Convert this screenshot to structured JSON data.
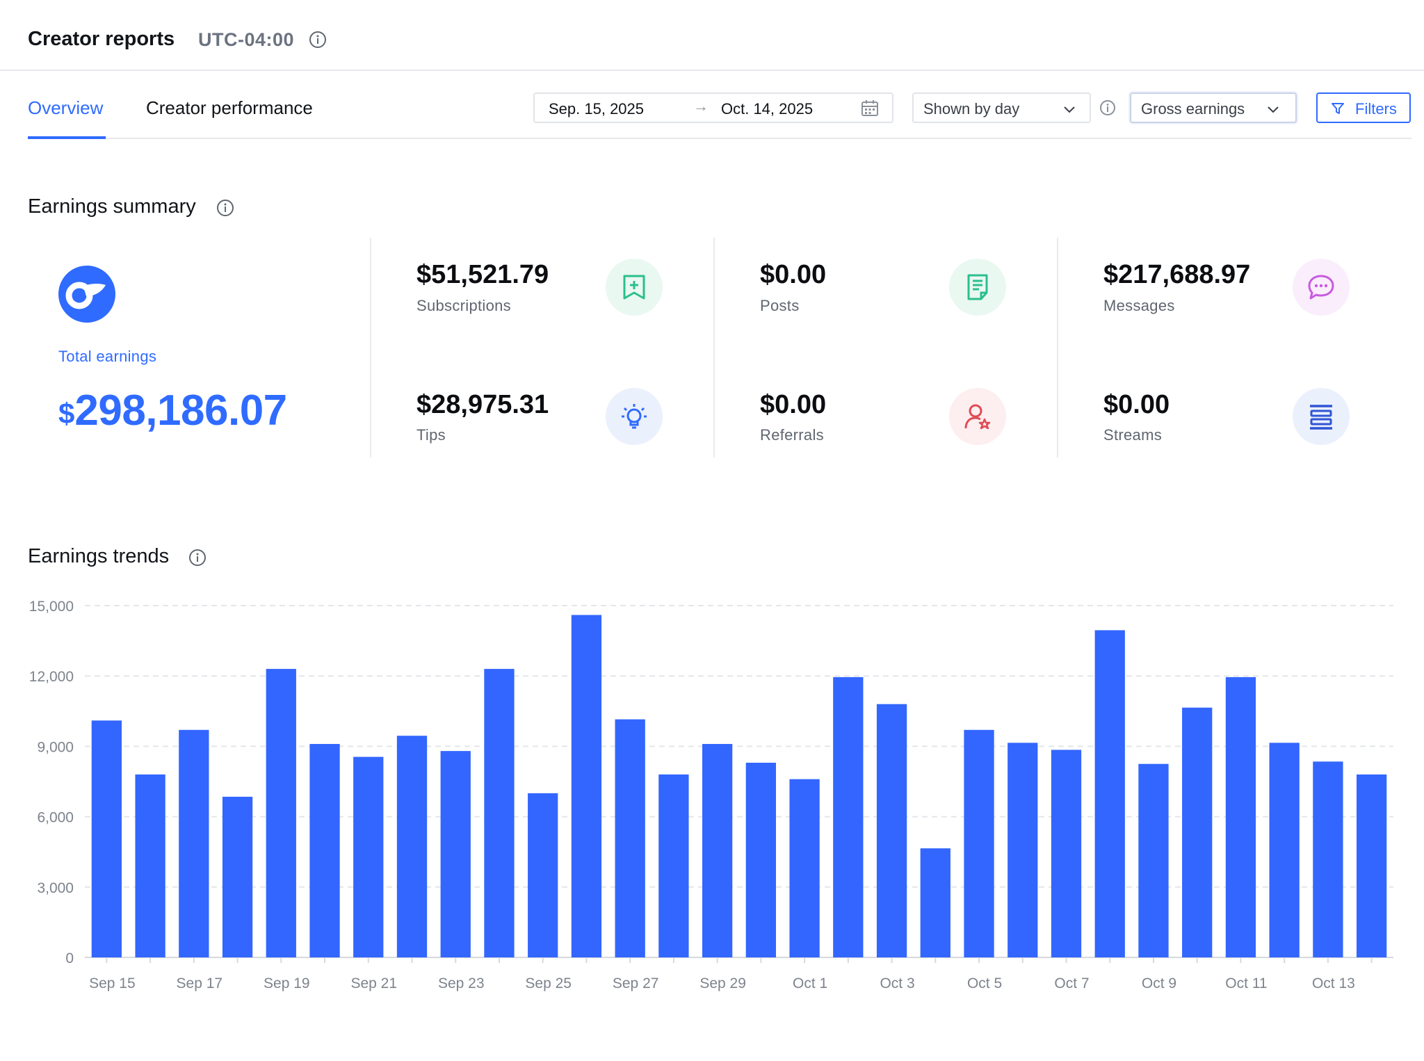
{
  "header": {
    "title": "Creator reports",
    "timezone": "UTC-04:00"
  },
  "tabs": [
    {
      "label": "Overview",
      "active": true
    },
    {
      "label": "Creator performance",
      "active": false
    }
  ],
  "date_range": {
    "start": "Sep. 15, 2025",
    "arrow": "→",
    "end": "Oct. 14, 2025"
  },
  "grouping_select": {
    "value": "Shown by day"
  },
  "metric_select": {
    "value": "Gross earnings"
  },
  "filters_button": {
    "label": "Filters"
  },
  "earnings_summary": {
    "title": "Earnings summary",
    "total": {
      "label": "Total earnings",
      "currency": "$",
      "value": "298,186.07"
    },
    "metrics": [
      {
        "value": "$51,521.79",
        "label": "Subscriptions",
        "icon": "subscription-icon",
        "icon_color": "#2bbf8e",
        "icon_bg": "#eaf8f2"
      },
      {
        "value": "$28,975.31",
        "label": "Tips",
        "icon": "lightbulb-icon",
        "icon_color": "#2f6bff",
        "icon_bg": "#ebf0fd"
      },
      {
        "value": "$0.00",
        "label": "Posts",
        "icon": "document-icon",
        "icon_color": "#2bbf8e",
        "icon_bg": "#eaf8f2"
      },
      {
        "value": "$0.00",
        "label": "Referrals",
        "icon": "referral-user-icon",
        "icon_color": "#e04b54",
        "icon_bg": "#fdeef0"
      },
      {
        "value": "$217,688.97",
        "label": "Messages",
        "icon": "chat-bubble-icon",
        "icon_color": "#c85ae0",
        "icon_bg": "#faeefc"
      },
      {
        "value": "$0.00",
        "label": "Streams",
        "icon": "streams-icon",
        "icon_color": "#2f55d4",
        "icon_bg": "#ebf0fd"
      }
    ]
  },
  "earnings_trends": {
    "title": "Earnings trends"
  },
  "chart_data": {
    "type": "bar",
    "title": "",
    "xlabel": "",
    "ylabel": "",
    "ylim": [
      0,
      15000
    ],
    "yticks": [
      0,
      3000,
      6000,
      9000,
      12000,
      15000
    ],
    "ytick_labels": [
      "0",
      "3,000",
      "6,000",
      "9,000",
      "12,000",
      "15,000"
    ],
    "grid": true,
    "bar_color": "#3366ff",
    "categories": [
      "Sep 15",
      "Sep 16",
      "Sep 17",
      "Sep 18",
      "Sep 19",
      "Sep 20",
      "Sep 21",
      "Sep 22",
      "Sep 23",
      "Sep 24",
      "Sep 25",
      "Sep 26",
      "Sep 27",
      "Sep 28",
      "Sep 29",
      "Sep 30",
      "Oct 1",
      "Oct 2",
      "Oct 3",
      "Oct 4",
      "Oct 5",
      "Oct 6",
      "Oct 7",
      "Oct 8",
      "Oct 9",
      "Oct 10",
      "Oct 11",
      "Oct 12",
      "Oct 13",
      "Oct 14"
    ],
    "xtick_labels": [
      "Sep 15",
      "Sep 17",
      "Sep 19",
      "Sep 21",
      "Sep 23",
      "Sep 25",
      "Sep 27",
      "Sep 29",
      "Oct 1",
      "Oct 3",
      "Oct 5",
      "Oct 7",
      "Oct 9",
      "Oct 11",
      "Oct 13"
    ],
    "values": [
      10100,
      7800,
      9700,
      6850,
      12300,
      9100,
      8550,
      9450,
      8800,
      12300,
      7000,
      14600,
      10150,
      7800,
      9100,
      8300,
      7600,
      11950,
      10800,
      4650,
      9700,
      9150,
      8850,
      13950,
      8250,
      10650,
      11950,
      9150,
      8350,
      7800
    ]
  }
}
